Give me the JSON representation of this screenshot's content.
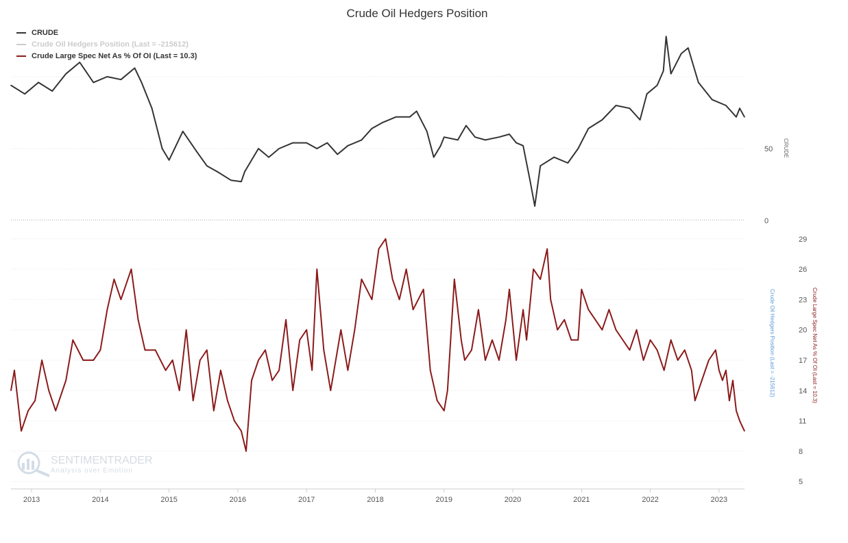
{
  "title": "Crude Oil Hedgers Position",
  "legend": [
    {
      "label": "CRUDE",
      "color": "#333333"
    },
    {
      "label": "Crude Oil Hedgers Position (Last = -215612)",
      "color": "#cccccc"
    },
    {
      "label": "Crude Large Spec Net As % Of OI (Last = 10.3)",
      "color": "#8b1a1a"
    }
  ],
  "watermark": {
    "brand": "SENTIMENTRADER",
    "tagline": "Analysis over Emotion"
  },
  "chart_data": [
    {
      "type": "line",
      "panel": "top",
      "series": [
        {
          "name": "CRUDE",
          "color": "#333333",
          "x": [
            2012.7,
            2012.9,
            2013.1,
            2013.3,
            2013.5,
            2013.7,
            2013.9,
            2014.1,
            2014.3,
            2014.5,
            2014.6,
            2014.75,
            2014.9,
            2015.0,
            2015.1,
            2015.2,
            2015.4,
            2015.55,
            2015.7,
            2015.9,
            2016.05,
            2016.1,
            2016.3,
            2016.45,
            2016.6,
            2016.8,
            2017.0,
            2017.15,
            2017.3,
            2017.45,
            2017.6,
            2017.8,
            2017.95,
            2018.1,
            2018.3,
            2018.5,
            2018.6,
            2018.75,
            2018.85,
            2018.95,
            2019.0,
            2019.2,
            2019.32,
            2019.45,
            2019.6,
            2019.8,
            2019.95,
            2020.05,
            2020.15,
            2020.25,
            2020.32,
            2020.4,
            2020.6,
            2020.8,
            2020.95,
            2021.1,
            2021.3,
            2021.5,
            2021.7,
            2021.85,
            2021.95,
            2022.1,
            2022.19,
            2022.23,
            2022.3,
            2022.45,
            2022.55,
            2022.7,
            2022.9,
            2023.1,
            2023.25,
            2023.3,
            2023.37
          ],
          "y": [
            94,
            88,
            96,
            90,
            102,
            110,
            96,
            100,
            98,
            106,
            96,
            78,
            50,
            42,
            52,
            62,
            48,
            38,
            34,
            28,
            27,
            34,
            50,
            44,
            50,
            54,
            54,
            50,
            54,
            46,
            52,
            56,
            64,
            68,
            72,
            72,
            76,
            62,
            44,
            52,
            58,
            56,
            66,
            58,
            56,
            58,
            60,
            54,
            52,
            28,
            10,
            38,
            44,
            40,
            50,
            64,
            70,
            80,
            78,
            70,
            88,
            94,
            104,
            128,
            102,
            116,
            120,
            96,
            84,
            80,
            72,
            78,
            72
          ]
        }
      ],
      "ylim": [
        0,
        120
      ],
      "yticks": [
        0,
        50
      ],
      "ytick_labels": [
        "0",
        "50"
      ],
      "ylabel": "CRUDE"
    },
    {
      "type": "line",
      "panel": "bottom",
      "series": [
        {
          "name": "Crude Large Spec Net As % Of OI (Last = 10.3)",
          "color": "#8b1a1a",
          "x": [
            2012.7,
            2012.75,
            2012.85,
            2012.95,
            2013.05,
            2013.15,
            2013.25,
            2013.35,
            2013.5,
            2013.6,
            2013.75,
            2013.9,
            2014.0,
            2014.1,
            2014.2,
            2014.3,
            2014.45,
            2014.55,
            2014.65,
            2014.8,
            2014.95,
            2015.05,
            2015.15,
            2015.25,
            2015.35,
            2015.45,
            2015.55,
            2015.65,
            2015.75,
            2015.85,
            2015.95,
            2016.05,
            2016.12,
            2016.2,
            2016.3,
            2016.4,
            2016.5,
            2016.6,
            2016.7,
            2016.8,
            2016.9,
            2017.0,
            2017.08,
            2017.15,
            2017.25,
            2017.35,
            2017.5,
            2017.6,
            2017.7,
            2017.8,
            2017.95,
            2018.05,
            2018.15,
            2018.25,
            2018.35,
            2018.45,
            2018.55,
            2018.7,
            2018.8,
            2018.9,
            2019.0,
            2019.05,
            2019.15,
            2019.25,
            2019.3,
            2019.4,
            2019.5,
            2019.6,
            2019.7,
            2019.8,
            2019.9,
            2019.95,
            2020.05,
            2020.15,
            2020.2,
            2020.3,
            2020.4,
            2020.5,
            2020.55,
            2020.65,
            2020.75,
            2020.85,
            2020.95,
            2021.0,
            2021.1,
            2021.2,
            2021.3,
            2021.4,
            2021.5,
            2021.6,
            2021.7,
            2021.8,
            2021.9,
            2022.0,
            2022.1,
            2022.2,
            2022.3,
            2022.4,
            2022.5,
            2022.6,
            2022.65,
            2022.75,
            2022.85,
            2022.95,
            2023.0,
            2023.05,
            2023.1,
            2023.15,
            2023.2,
            2023.25,
            2023.3,
            2023.37
          ],
          "y": [
            14,
            16,
            10,
            12,
            13,
            17,
            14,
            12,
            15,
            19,
            17,
            17,
            18,
            22,
            25,
            23,
            26,
            21,
            18,
            18,
            16,
            17,
            14,
            20,
            13,
            17,
            18,
            12,
            16,
            13,
            11,
            10,
            8,
            15,
            17,
            18,
            15,
            16,
            21,
            14,
            19,
            20,
            16,
            26,
            18,
            14,
            20,
            16,
            20,
            25,
            23,
            28,
            29,
            25,
            23,
            26,
            22,
            24,
            16,
            13,
            12,
            14,
            25,
            19,
            17,
            18,
            22,
            17,
            19,
            17,
            21,
            24,
            17,
            22,
            19,
            26,
            25,
            28,
            23,
            20,
            21,
            19,
            19,
            24,
            22,
            21,
            20,
            22,
            20,
            19,
            18,
            20,
            17,
            19,
            18,
            16,
            19,
            17,
            18,
            16,
            13,
            15,
            17,
            18,
            16,
            15,
            16,
            13,
            15,
            12,
            11,
            10
          ]
        }
      ],
      "ylim": [
        4,
        30
      ],
      "yticks": [
        5,
        8,
        11,
        14,
        17,
        20,
        23,
        26,
        29
      ],
      "ytick_labels": [
        "5",
        "8",
        "11",
        "14",
        "17",
        "20",
        "23",
        "26",
        "29"
      ],
      "ylabel": "Crude Large Spec Net As % Of OI (Last = 10.3)",
      "ylabel_secondary": "Crude Oil Hedgers Position (Last = -215612)"
    }
  ],
  "xaxis": {
    "xlim": [
      2012.7,
      2023.37
    ],
    "ticks": [
      2013,
      2014,
      2015,
      2016,
      2017,
      2018,
      2019,
      2020,
      2021,
      2022,
      2023
    ],
    "tick_labels": [
      "2013",
      "2014",
      "2015",
      "2016",
      "2017",
      "2018",
      "2019",
      "2020",
      "2021",
      "2022",
      "2023"
    ]
  },
  "colors": {
    "grid": "#e6e6e6",
    "axis_text": "#555555",
    "hedgers_label": "#5b9bd5"
  }
}
